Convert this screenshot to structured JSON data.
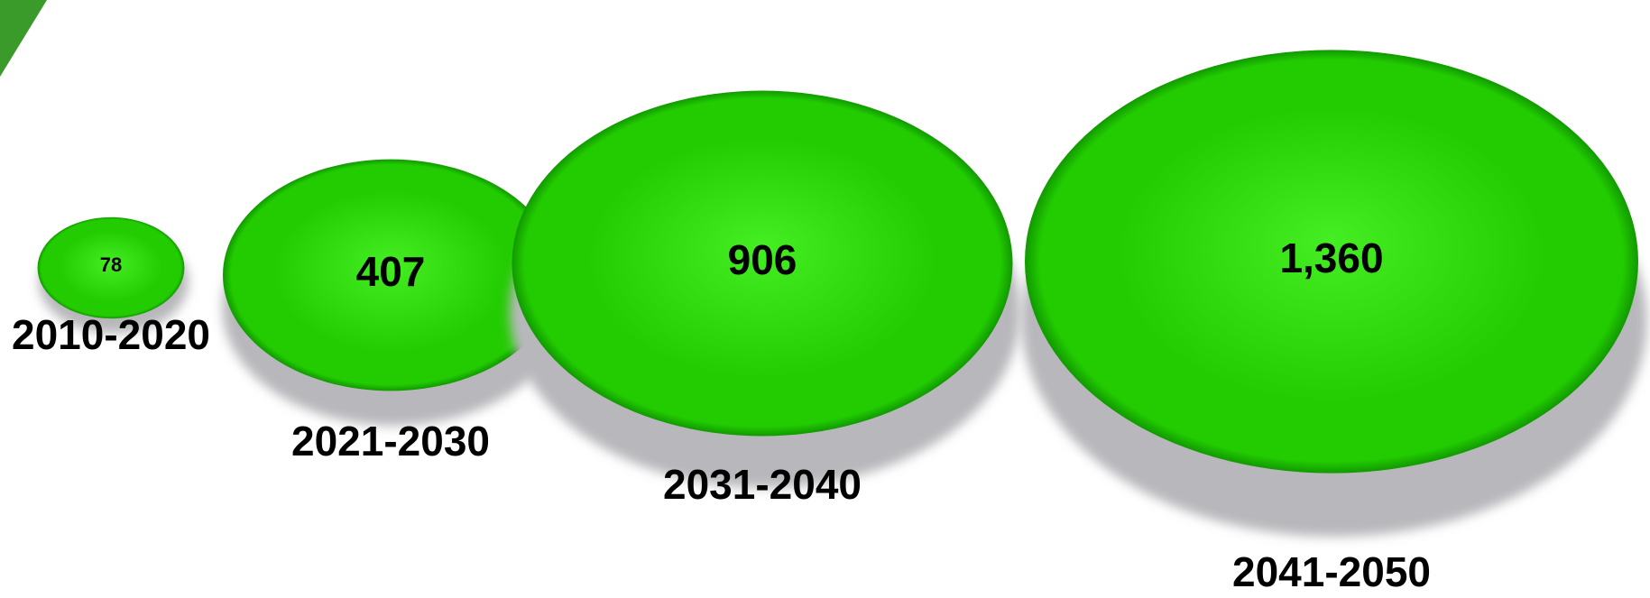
{
  "chart_data": {
    "type": "bubble",
    "title": "",
    "categories": [
      "2010-2020",
      "2021-2030",
      "2031-2040",
      "2041-2050"
    ],
    "values": [
      78,
      407,
      906,
      1360
    ],
    "value_labels": [
      "78",
      "407",
      "906",
      "1,360"
    ],
    "bubble_color": "#22cc00",
    "bubble_highlight_color": "#44ee22",
    "bubble_edge_color": "#119900",
    "shadow_color": "#b8b8bc",
    "corner_accent_color": "#3a9a2a",
    "legend": "none",
    "grid": false
  }
}
